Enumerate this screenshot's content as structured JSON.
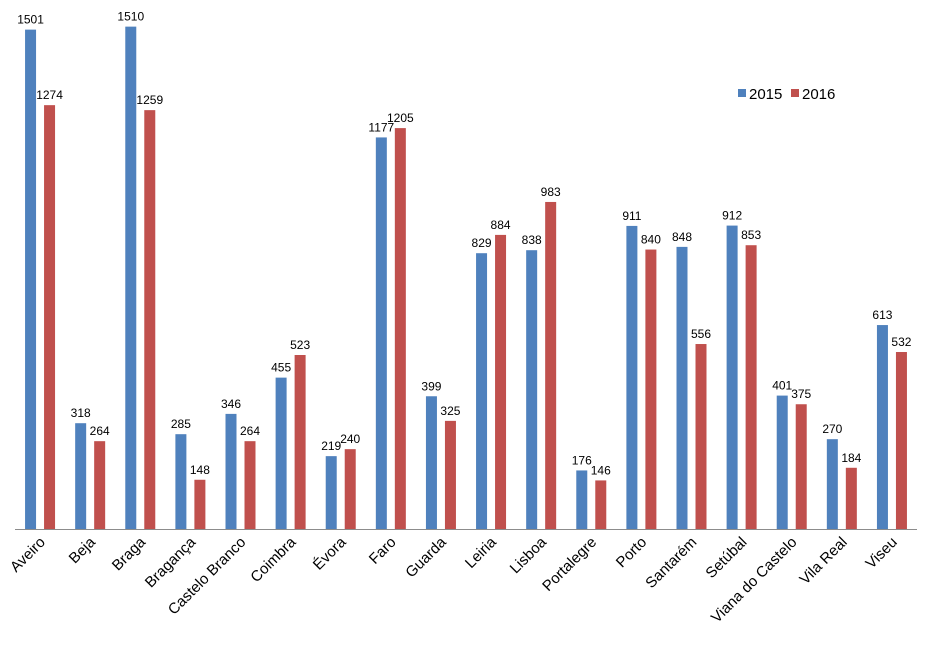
{
  "chart_data": {
    "type": "bar",
    "title": "",
    "xlabel": "",
    "ylabel": "",
    "ylim": [
      0,
      1560
    ],
    "grid": false,
    "legend_position": "top-right",
    "categories": [
      "Aveiro",
      "Beja",
      "Braga",
      "Bragança",
      "Castelo Branco",
      "Coimbra",
      "Évora",
      "Faro",
      "Guarda",
      "Leiria",
      "Lisboa",
      "Portalegre",
      "Porto",
      "Santarém",
      "Setúbal",
      "Viana do Castelo",
      "Vila Real",
      "Viseu"
    ],
    "series": [
      {
        "name": "2015",
        "color": "#4F81BD",
        "values": [
          1501,
          318,
          1510,
          285,
          346,
          455,
          219,
          1177,
          399,
          829,
          838,
          176,
          911,
          848,
          912,
          401,
          270,
          613
        ]
      },
      {
        "name": "2016",
        "color": "#C0504D",
        "values": [
          1274,
          264,
          1259,
          148,
          264,
          523,
          240,
          1205,
          325,
          884,
          983,
          146,
          840,
          556,
          853,
          375,
          184,
          532
        ]
      }
    ]
  }
}
